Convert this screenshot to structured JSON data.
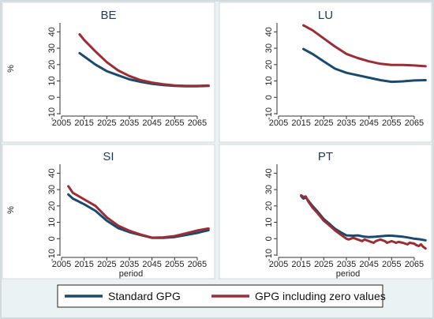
{
  "chart_data": [
    {
      "type": "line",
      "title": "BE",
      "ylabel": "%",
      "xlabel": "",
      "xlim": [
        2005,
        2072
      ],
      "ylim": [
        -10,
        45
      ],
      "xticks": [
        2005,
        2015,
        2025,
        2035,
        2045,
        2055,
        2065
      ],
      "yticks": [
        -10,
        0,
        10,
        20,
        30,
        40
      ],
      "series": [
        {
          "name": "Standard GPG",
          "color": "#1a4a6e",
          "x": [
            2013,
            2015,
            2020,
            2025,
            2030,
            2035,
            2040,
            2045,
            2050,
            2055,
            2060,
            2065,
            2070
          ],
          "y": [
            27,
            25,
            20,
            16,
            13.5,
            11,
            9.5,
            8.3,
            7.5,
            7,
            6.8,
            6.8,
            7
          ]
        },
        {
          "name": "GPG including zero values",
          "color": "#9b2d35",
          "x": [
            2013,
            2015,
            2020,
            2025,
            2030,
            2035,
            2040,
            2045,
            2050,
            2055,
            2060,
            2065,
            2070
          ],
          "y": [
            38.5,
            35,
            28,
            21.5,
            16.5,
            13,
            10.5,
            9,
            8,
            7.2,
            7,
            7,
            7.2
          ]
        }
      ]
    },
    {
      "type": "line",
      "title": "LU",
      "ylabel": "",
      "xlabel": "",
      "xlim": [
        2005,
        2072
      ],
      "ylim": [
        -10,
        45
      ],
      "xticks": [
        2005,
        2015,
        2025,
        2035,
        2045,
        2055,
        2065
      ],
      "yticks": [
        -10,
        0,
        10,
        20,
        30,
        40
      ],
      "series": [
        {
          "name": "Standard GPG",
          "color": "#1a4a6e",
          "x": [
            2016,
            2020,
            2025,
            2030,
            2035,
            2040,
            2045,
            2050,
            2055,
            2060,
            2065,
            2070
          ],
          "y": [
            29.5,
            26.5,
            22,
            17.5,
            15,
            13.5,
            12,
            10.5,
            9.5,
            9.8,
            10.3,
            10.5
          ]
        },
        {
          "name": "GPG including zero values",
          "color": "#9b2d35",
          "x": [
            2016,
            2020,
            2025,
            2030,
            2035,
            2040,
            2045,
            2050,
            2055,
            2060,
            2065,
            2070
          ],
          "y": [
            44,
            41,
            36,
            31,
            26.5,
            24,
            22,
            20.5,
            19.8,
            19.8,
            19.5,
            19
          ]
        }
      ]
    },
    {
      "type": "line",
      "title": "SI",
      "ylabel": "%",
      "xlabel": "period",
      "xlim": [
        2005,
        2072
      ],
      "ylim": [
        -10,
        45
      ],
      "xticks": [
        2005,
        2015,
        2025,
        2035,
        2045,
        2055,
        2065
      ],
      "yticks": [
        -10,
        0,
        10,
        20,
        30,
        40
      ],
      "series": [
        {
          "name": "Standard GPG",
          "color": "#1a4a6e",
          "x": [
            2008,
            2010,
            2015,
            2020,
            2025,
            2030,
            2035,
            2040,
            2045,
            2050,
            2055,
            2060,
            2065,
            2070
          ],
          "y": [
            27,
            24.5,
            21,
            17,
            11,
            6.5,
            4,
            2.2,
            0.5,
            0.5,
            1,
            2.2,
            3.5,
            5.2
          ]
        },
        {
          "name": "GPG including zero values",
          "color": "#9b2d35",
          "x": [
            2008,
            2010,
            2015,
            2020,
            2025,
            2030,
            2035,
            2040,
            2045,
            2050,
            2055,
            2060,
            2065,
            2070
          ],
          "y": [
            32,
            28,
            24,
            20,
            13,
            8,
            4.8,
            2.5,
            0.6,
            0.8,
            1.6,
            3.2,
            5,
            6.2
          ]
        }
      ]
    },
    {
      "type": "line",
      "title": "PT",
      "ylabel": "",
      "xlabel": "period",
      "xlim": [
        2005,
        2072
      ],
      "ylim": [
        -10,
        45
      ],
      "xticks": [
        2005,
        2015,
        2025,
        2035,
        2045,
        2055,
        2065
      ],
      "yticks": [
        -10,
        0,
        10,
        20,
        30,
        40
      ],
      "series": [
        {
          "name": "Standard GPG",
          "color": "#1a4a6e",
          "x": [
            2015,
            2016,
            2017,
            2018,
            2020,
            2022,
            2025,
            2028,
            2030,
            2033,
            2035,
            2038,
            2040,
            2043,
            2045,
            2048,
            2050,
            2053,
            2055,
            2058,
            2060,
            2063,
            2065,
            2068,
            2070
          ],
          "y": [
            26,
            24.5,
            25.2,
            23.5,
            20,
            17,
            12,
            8.5,
            6,
            3.5,
            2,
            1.8,
            2,
            1.2,
            1,
            1.2,
            1.5,
            1.8,
            1.8,
            1.5,
            1.2,
            0.5,
            0,
            -0.5,
            -1
          ]
        },
        {
          "name": "GPG including zero values",
          "color": "#9b2d35",
          "x": [
            2015,
            2016,
            2017,
            2018,
            2020,
            2022,
            2025,
            2028,
            2030,
            2033,
            2035,
            2036,
            2038,
            2040,
            2042,
            2043,
            2045,
            2047,
            2048,
            2050,
            2052,
            2053,
            2055,
            2057,
            2058,
            2060,
            2062,
            2063,
            2065,
            2066,
            2067,
            2068,
            2069,
            2070
          ],
          "y": [
            26.5,
            25.5,
            25.8,
            23,
            19,
            16,
            11,
            7.5,
            5,
            2,
            0,
            -0.5,
            0.5,
            -0.5,
            -1.5,
            -0.5,
            -1.5,
            -2.5,
            -1.5,
            -0.5,
            -1.5,
            -2.5,
            -1.5,
            -2.5,
            -2,
            -2.5,
            -3.5,
            -2.5,
            -3,
            -4,
            -4.5,
            -3.5,
            -5,
            -6
          ]
        }
      ]
    }
  ],
  "legend": {
    "placement": "bottom",
    "items": [
      {
        "label": "Standard GPG",
        "color": "#1a4a6e"
      },
      {
        "label": "GPG including zero values",
        "color": "#9b2d35"
      }
    ]
  }
}
